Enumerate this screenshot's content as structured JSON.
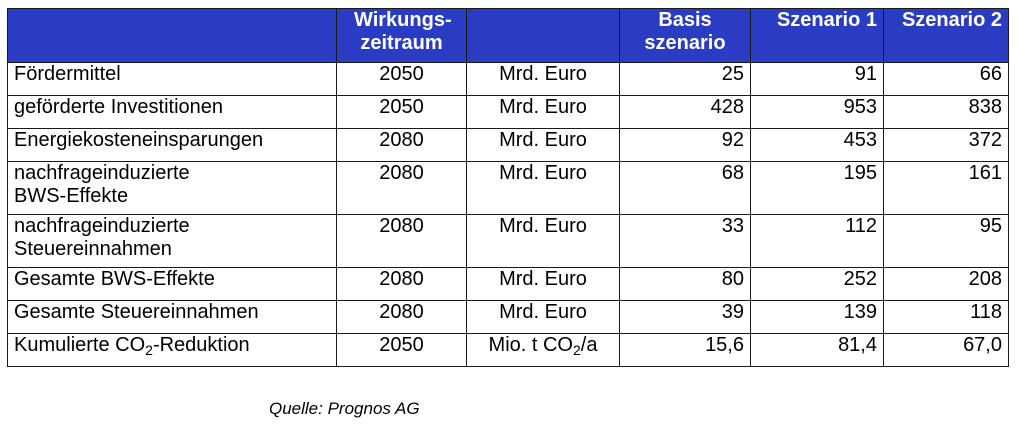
{
  "header": {
    "name": "",
    "period": "Wirkungs- zeitraum",
    "unit": "",
    "basis": "Basis szenario",
    "s1": "Szenario 1",
    "s2": "Szenario 2"
  },
  "rows": [
    {
      "name": "Fördermittel",
      "year": "2050",
      "unit": "Mrd. Euro",
      "basis": "25",
      "s1": "91",
      "s2": "66"
    },
    {
      "name": "geförderte Investitionen",
      "year": "2050",
      "unit": "Mrd. Euro",
      "basis": "428",
      "s1": "953",
      "s2": "838"
    },
    {
      "name": "Energiekosteneinsparungen",
      "year": "2080",
      "unit": "Mrd. Euro",
      "basis": "92",
      "s1": "453",
      "s2": "372"
    },
    {
      "name": "nachfrageinduzierte BWS-Effekte",
      "year": "2080",
      "unit": "Mrd. Euro",
      "basis": "68",
      "s1": "195",
      "s2": "161"
    },
    {
      "name": "nachfrageinduzierte Steuereinnahmen",
      "year": "2080",
      "unit": "Mrd. Euro",
      "basis": "33",
      "s1": "112",
      "s2": "95"
    },
    {
      "name": "Gesamte BWS-Effekte",
      "year": "2080",
      "unit": "Mrd. Euro",
      "basis": "80",
      "s1": "252",
      "s2": "208"
    },
    {
      "name": "Gesamte Steuereinnahmen",
      "year": "2080",
      "unit": "Mrd. Euro",
      "basis": "39",
      "s1": "139",
      "s2": "118"
    },
    {
      "name_pre": "Kumulierte CO",
      "name_sub": "2",
      "name_post": "-Reduktion",
      "year": "2050",
      "unit_pre": "Mio. t CO",
      "unit_sub": "2",
      "unit_post": "/a",
      "basis": "15,6",
      "s1": "81,4",
      "s2": "67,0"
    }
  ],
  "source": "Quelle: Prognos AG"
}
